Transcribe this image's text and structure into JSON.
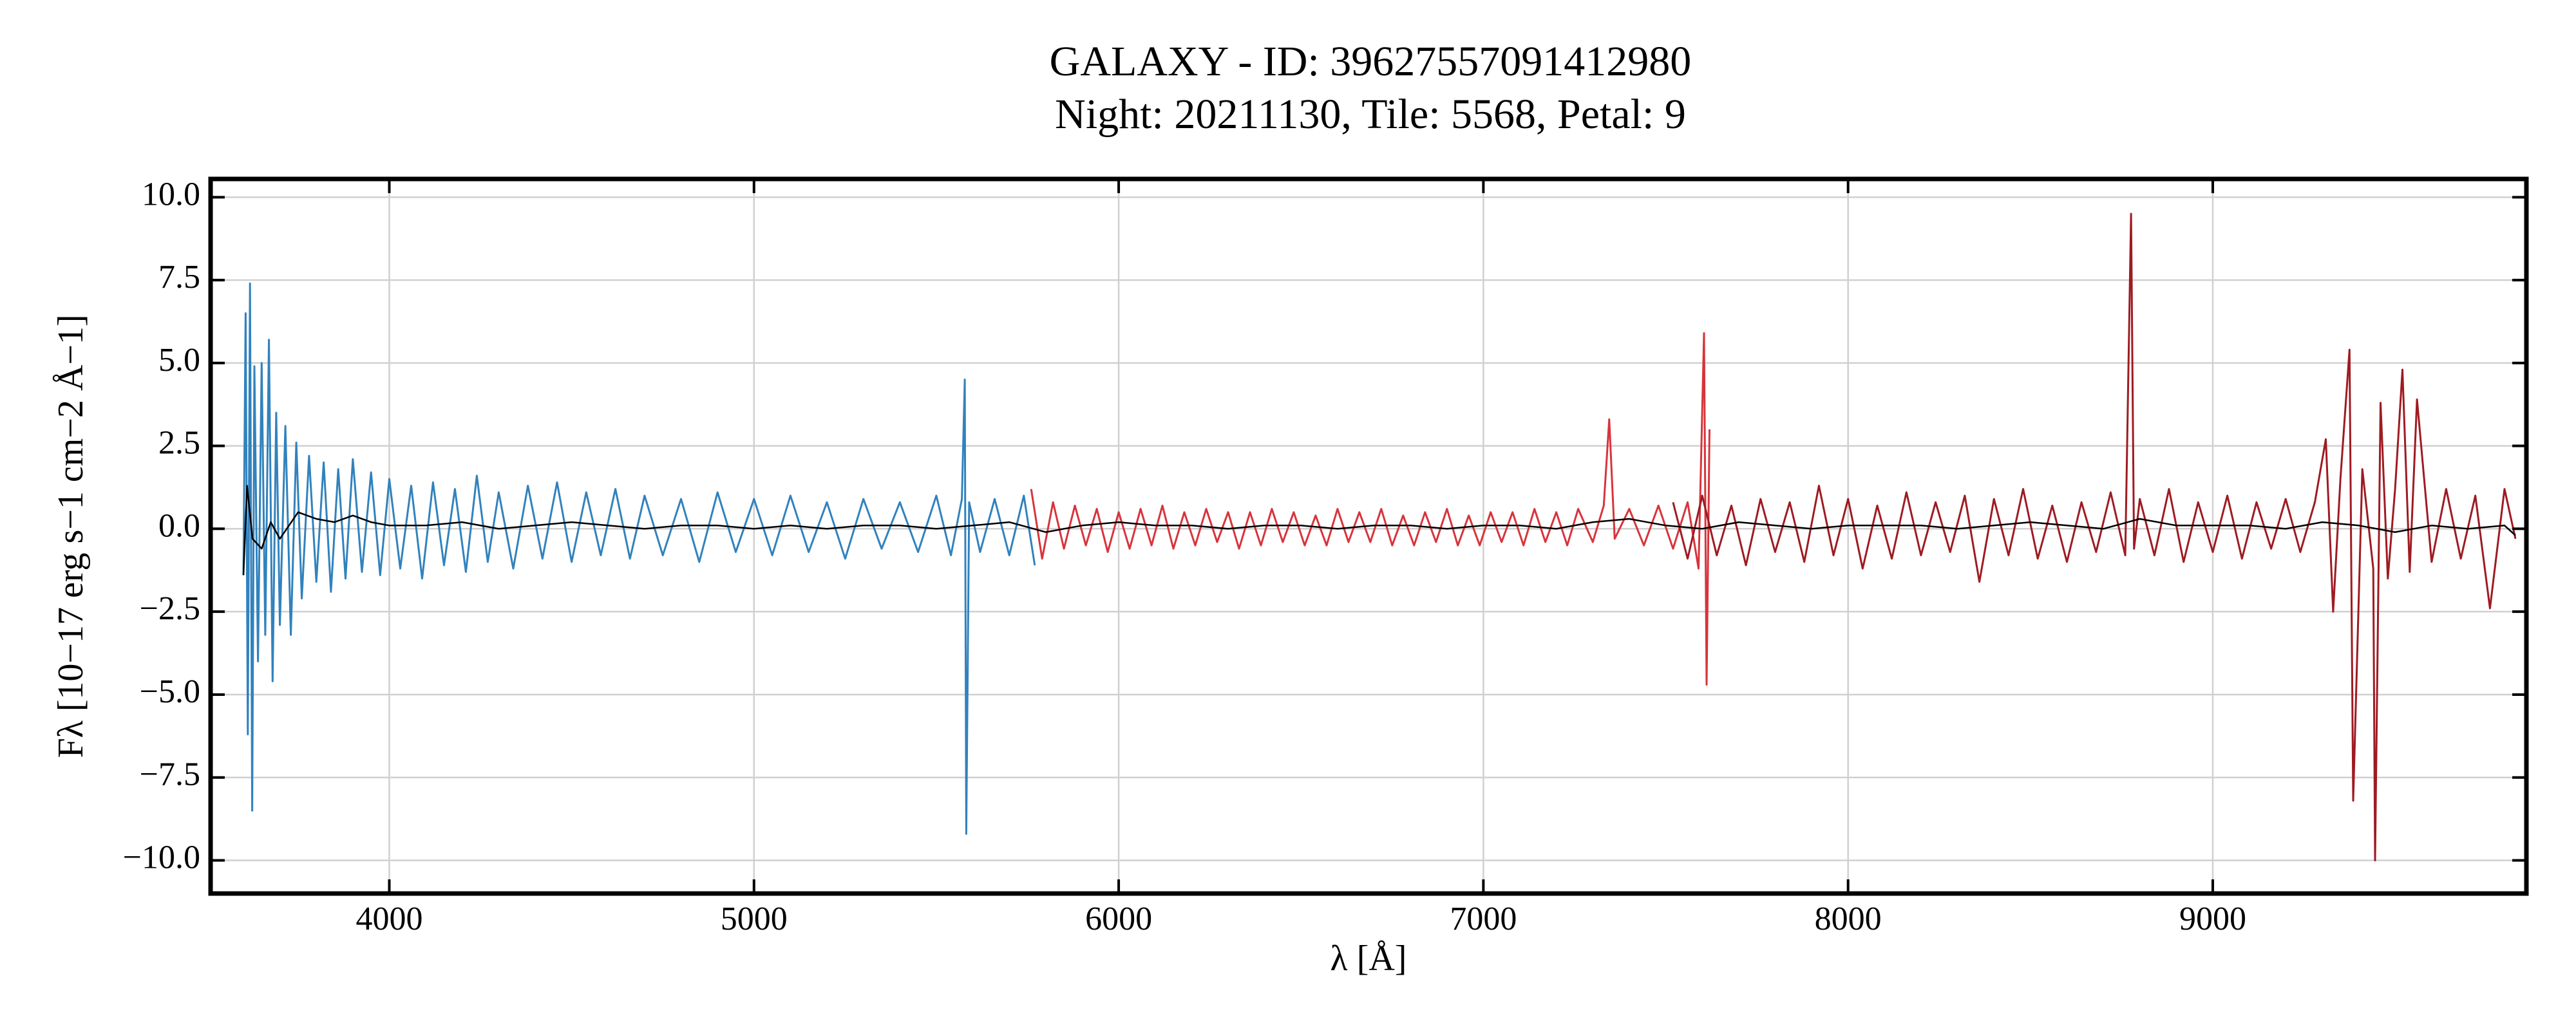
{
  "chart_data": {
    "type": "line",
    "title": "GALAXY - ID: 39627557091412980",
    "subtitle": "Night: 20211130, Tile: 5568, Petal: 9",
    "x_label": "λ [Å]",
    "y_label": "Fλ [10−17 erg s−1 cm−2 Å−1]",
    "xlim": [
      3510,
      9860
    ],
    "ylim": [
      -11,
      10.55
    ],
    "xticks": [
      4000,
      5000,
      6000,
      7000,
      8000,
      9000
    ],
    "yticks": [
      {
        "value": 10,
        "label": "10.0"
      },
      {
        "value": 7.5,
        "label": "7.5"
      },
      {
        "value": 5,
        "label": "5.0"
      },
      {
        "value": 2.5,
        "label": "2.5"
      },
      {
        "value": 0,
        "label": "0.0"
      },
      {
        "value": -2.5,
        "label": "−2.5"
      },
      {
        "value": -5,
        "label": "−5.0"
      },
      {
        "value": -7.5,
        "label": "−7.5"
      },
      {
        "value": -10,
        "label": "−10.0"
      }
    ],
    "grid": true,
    "series": [
      {
        "color": "#3182bd",
        "width": 3,
        "x": [
          3600,
          3606,
          3612,
          3618,
          3624,
          3630,
          3640,
          3650,
          3660,
          3670,
          3680,
          3690,
          3700,
          3715,
          3730,
          3745,
          3760,
          3780,
          3800,
          3820,
          3840,
          3860,
          3880,
          3900,
          3925,
          3950,
          3975,
          4000,
          4030,
          4060,
          4090,
          4120,
          4150,
          4180,
          4210,
          4240,
          4270,
          4300,
          4340,
          4380,
          4420,
          4460,
          4500,
          4540,
          4580,
          4620,
          4660,
          4700,
          4750,
          4800,
          4850,
          4900,
          4950,
          5000,
          5050,
          5100,
          5150,
          5200,
          5250,
          5300,
          5350,
          5400,
          5450,
          5500,
          5540,
          5570,
          5578,
          5582,
          5590,
          5620,
          5660,
          5700,
          5740,
          5770
        ],
        "values": [
          -1.4,
          6.5,
          -6.2,
          7.4,
          -8.5,
          4.9,
          -4.0,
          5.0,
          -3.2,
          5.7,
          -4.6,
          3.5,
          -2.9,
          3.1,
          -3.2,
          2.6,
          -2.1,
          2.2,
          -1.6,
          2.0,
          -1.9,
          1.8,
          -1.5,
          2.1,
          -1.3,
          1.7,
          -1.4,
          1.5,
          -1.2,
          1.3,
          -1.5,
          1.4,
          -1.1,
          1.2,
          -1.3,
          1.6,
          -1.0,
          1.1,
          -1.2,
          1.3,
          -0.9,
          1.4,
          -1.0,
          1.1,
          -0.8,
          1.2,
          -0.9,
          1.0,
          -0.8,
          0.9,
          -1.0,
          1.1,
          -0.7,
          0.9,
          -0.8,
          1.0,
          -0.7,
          0.8,
          -0.9,
          0.9,
          -0.6,
          0.8,
          -0.7,
          1.0,
          -0.8,
          0.9,
          4.5,
          -9.2,
          0.8,
          -0.7,
          0.9,
          -0.8,
          1.0,
          -1.1
        ]
      },
      {
        "color": "#d7343c",
        "width": 3,
        "x": [
          5760,
          5790,
          5820,
          5850,
          5880,
          5910,
          5940,
          5970,
          6000,
          6030,
          6060,
          6090,
          6120,
          6150,
          6180,
          6210,
          6240,
          6270,
          6300,
          6330,
          6360,
          6390,
          6420,
          6450,
          6480,
          6510,
          6540,
          6570,
          6600,
          6630,
          6660,
          6690,
          6720,
          6750,
          6780,
          6810,
          6840,
          6870,
          6900,
          6930,
          6960,
          6990,
          7020,
          7050,
          7080,
          7110,
          7140,
          7170,
          7200,
          7230,
          7260,
          7300,
          7330,
          7345,
          7360,
          7400,
          7440,
          7480,
          7520,
          7560,
          7590,
          7605,
          7612,
          7620
        ],
        "values": [
          1.2,
          -0.9,
          0.8,
          -0.6,
          0.7,
          -0.5,
          0.6,
          -0.7,
          0.5,
          -0.6,
          0.6,
          -0.5,
          0.7,
          -0.6,
          0.5,
          -0.5,
          0.6,
          -0.4,
          0.5,
          -0.6,
          0.5,
          -0.5,
          0.6,
          -0.4,
          0.5,
          -0.5,
          0.4,
          -0.5,
          0.6,
          -0.4,
          0.5,
          -0.4,
          0.6,
          -0.5,
          0.4,
          -0.5,
          0.5,
          -0.4,
          0.6,
          -0.5,
          0.4,
          -0.5,
          0.5,
          -0.4,
          0.5,
          -0.5,
          0.6,
          -0.4,
          0.5,
          -0.5,
          0.6,
          -0.4,
          0.7,
          3.3,
          -0.3,
          0.6,
          -0.5,
          0.7,
          -0.6,
          0.8,
          -1.2,
          5.9,
          -4.7,
          3.0
        ]
      },
      {
        "color": "#9e1b22",
        "width": 3,
        "x": [
          7520,
          7560,
          7600,
          7640,
          7680,
          7720,
          7760,
          7800,
          7840,
          7880,
          7920,
          7960,
          8000,
          8040,
          8080,
          8120,
          8160,
          8200,
          8240,
          8280,
          8320,
          8360,
          8400,
          8440,
          8480,
          8520,
          8560,
          8600,
          8640,
          8680,
          8720,
          8760,
          8776,
          8784,
          8800,
          8840,
          8880,
          8920,
          8960,
          9000,
          9040,
          9080,
          9120,
          9160,
          9200,
          9240,
          9280,
          9310,
          9330,
          9350,
          9375,
          9385,
          9410,
          9440,
          9445,
          9460,
          9480,
          9500,
          9520,
          9540,
          9560,
          9600,
          9640,
          9680,
          9720,
          9760,
          9800,
          9830
        ],
        "values": [
          0.8,
          -0.9,
          1.0,
          -0.8,
          0.7,
          -1.1,
          0.9,
          -0.7,
          0.8,
          -1.0,
          1.3,
          -0.8,
          0.9,
          -1.2,
          0.7,
          -0.9,
          1.1,
          -0.8,
          0.8,
          -0.7,
          1.0,
          -1.6,
          0.9,
          -0.8,
          1.2,
          -0.9,
          0.7,
          -1.0,
          0.8,
          -0.7,
          1.1,
          -0.8,
          9.5,
          -0.6,
          0.9,
          -0.8,
          1.2,
          -1.0,
          0.8,
          -0.7,
          1.0,
          -0.9,
          0.8,
          -0.6,
          0.9,
          -0.7,
          0.8,
          2.7,
          -2.5,
          1.5,
          5.4,
          -8.2,
          1.8,
          -1.2,
          -10.0,
          3.8,
          -1.5,
          1.2,
          4.8,
          -1.3,
          3.9,
          -1.0,
          1.2,
          -0.9,
          1.0,
          -2.4,
          1.2,
          -0.3
        ]
      },
      {
        "color": "#000000",
        "width": 2.5,
        "x": [
          3600,
          3610,
          3625,
          3650,
          3675,
          3700,
          3750,
          3800,
          3850,
          3900,
          3950,
          4000,
          4100,
          4200,
          4300,
          4400,
          4500,
          4600,
          4700,
          4800,
          4900,
          5000,
          5100,
          5200,
          5300,
          5400,
          5500,
          5600,
          5700,
          5800,
          5900,
          6000,
          6100,
          6200,
          6300,
          6400,
          6500,
          6600,
          6700,
          6800,
          6900,
          7000,
          7100,
          7200,
          7300,
          7400,
          7500,
          7600,
          7700,
          7800,
          7900,
          8000,
          8100,
          8200,
          8300,
          8400,
          8500,
          8600,
          8700,
          8800,
          8900,
          9000,
          9100,
          9200,
          9300,
          9400,
          9500,
          9600,
          9700,
          9800,
          9830
        ],
        "values": [
          -1.4,
          1.3,
          -0.3,
          -0.6,
          0.2,
          -0.3,
          0.5,
          0.3,
          0.2,
          0.4,
          0.2,
          0.1,
          0.1,
          0.2,
          0.0,
          0.1,
          0.2,
          0.1,
          0.0,
          0.1,
          0.1,
          0.0,
          0.1,
          0.0,
          0.1,
          0.1,
          0.0,
          0.1,
          0.2,
          -0.1,
          0.1,
          0.2,
          0.1,
          0.1,
          0.0,
          0.1,
          0.1,
          0.0,
          0.1,
          0.1,
          0.0,
          0.1,
          0.1,
          0.0,
          0.2,
          0.3,
          0.1,
          0.0,
          0.2,
          0.1,
          0.0,
          0.1,
          0.1,
          0.1,
          0.0,
          0.1,
          0.2,
          0.1,
          0.0,
          0.3,
          0.1,
          0.1,
          0.1,
          0.0,
          0.2,
          0.1,
          -0.1,
          0.1,
          0.0,
          0.1,
          -0.2
        ]
      }
    ]
  }
}
